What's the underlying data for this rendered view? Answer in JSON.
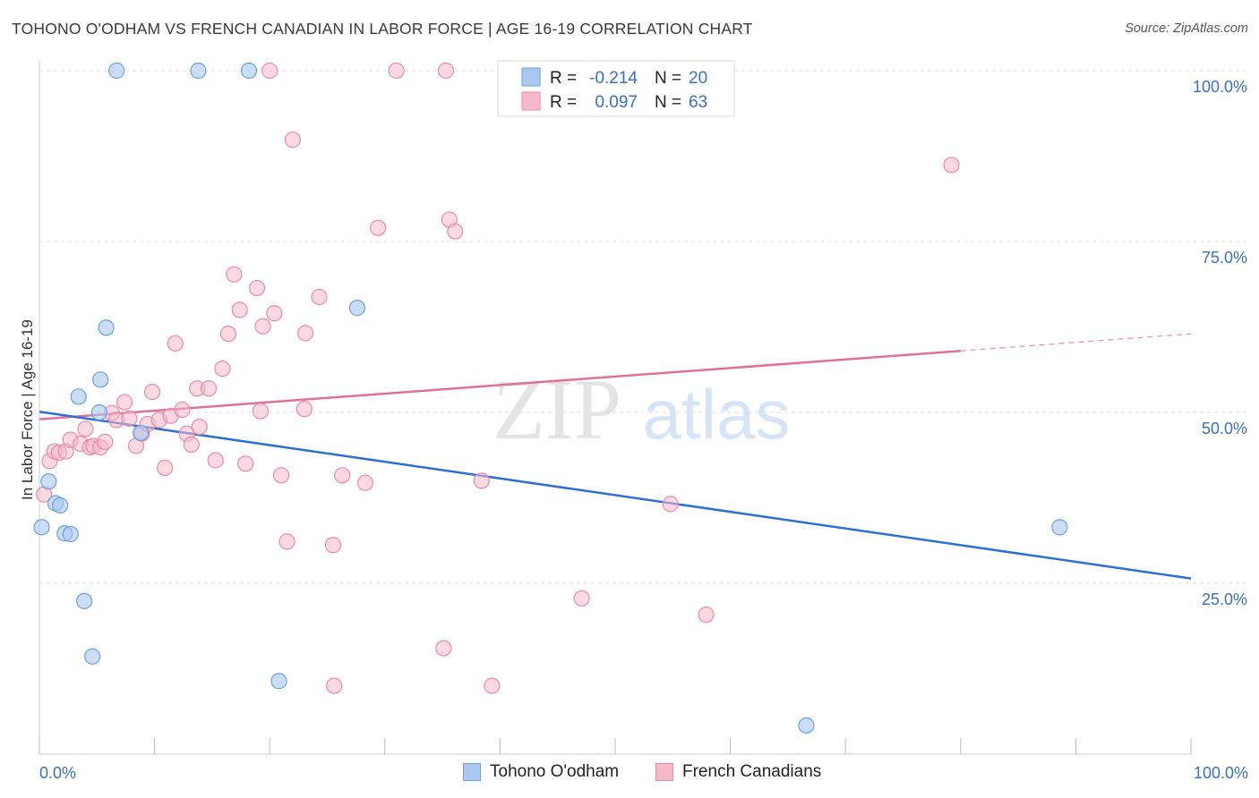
{
  "header": {
    "title": "TOHONO O'ODHAM VS FRENCH CANADIAN IN LABOR FORCE | AGE 16-19 CORRELATION CHART",
    "source": "Source: ZipAtlas.com"
  },
  "watermark": {
    "zip": "ZIP",
    "atlas": "atlas"
  },
  "legend_box": {
    "rows": [
      {
        "r_label": "R =",
        "r_value": "-0.214",
        "n_label": "N =",
        "n_value": "20"
      },
      {
        "r_label": "R =",
        "r_value": "0.097",
        "n_label": "N =",
        "n_value": "63"
      }
    ]
  },
  "colors": {
    "blue_fill": "#a9c8f0",
    "blue_stroke": "#6d9fe0",
    "blue_line": "#2e6fd6",
    "pink_fill": "#f6b9cc",
    "pink_stroke": "#e88aa8",
    "pink_line": "#e07098",
    "axis_label": "#3a6fc4",
    "grid": "#dddddd"
  },
  "chart_data": {
    "type": "scatter",
    "title": "TOHONO O'ODHAM VS FRENCH CANADIAN IN LABOR FORCE | AGE 16-19 CORRELATION CHART",
    "xlabel": "",
    "ylabel": "In Labor Force | Age 16-19",
    "xlim": [
      0,
      100
    ],
    "ylim": [
      0,
      100
    ],
    "x_tick_labels": [
      "0.0%",
      "100.0%"
    ],
    "y_ticks": [
      25,
      50,
      75,
      100
    ],
    "y_tick_labels": [
      "25.0%",
      "50.0%",
      "75.0%",
      "100.0%"
    ],
    "grid": true,
    "legend_position": "bottom",
    "series": [
      {
        "name": "Tohono O'odham",
        "color": "blue",
        "R": -0.214,
        "N": 20,
        "trend": {
          "x": [
            0,
            100
          ],
          "y": [
            50.1,
            25.7
          ]
        },
        "points": [
          [
            0.2,
            33.2
          ],
          [
            0.8,
            39.9
          ],
          [
            1.4,
            36.7
          ],
          [
            1.8,
            36.4
          ],
          [
            2.2,
            32.3
          ],
          [
            2.7,
            32.2
          ],
          [
            3.4,
            52.3
          ],
          [
            3.9,
            22.4
          ],
          [
            4.6,
            14.3
          ],
          [
            5.2,
            50.0
          ],
          [
            5.3,
            54.8
          ],
          [
            5.8,
            62.4
          ],
          [
            8.8,
            47.0
          ],
          [
            6.7,
            100
          ],
          [
            13.8,
            100
          ],
          [
            18.2,
            100
          ],
          [
            20.8,
            10.7
          ],
          [
            27.6,
            65.3
          ],
          [
            66.6,
            4.2
          ],
          [
            88.6,
            33.2
          ]
        ]
      },
      {
        "name": "French Canadians",
        "color": "pink",
        "R": 0.097,
        "N": 63,
        "trend": {
          "x": [
            0,
            80
          ],
          "y": [
            49.0,
            59.0
          ]
        },
        "trend_dashed": {
          "x": [
            80,
            100
          ],
          "y": [
            59.0,
            61.5
          ]
        },
        "points": [
          [
            0.4,
            38.0
          ],
          [
            0.9,
            42.9
          ],
          [
            1.3,
            44.3
          ],
          [
            1.7,
            44.1
          ],
          [
            2.3,
            44.3
          ],
          [
            2.7,
            46.0
          ],
          [
            3.6,
            45.4
          ],
          [
            4.0,
            47.6
          ],
          [
            4.4,
            44.9
          ],
          [
            4.7,
            45.1
          ],
          [
            5.3,
            44.9
          ],
          [
            5.7,
            45.7
          ],
          [
            6.3,
            49.9
          ],
          [
            6.7,
            48.9
          ],
          [
            7.4,
            51.5
          ],
          [
            7.8,
            49.1
          ],
          [
            8.4,
            45.1
          ],
          [
            8.9,
            46.9
          ],
          [
            9.4,
            48.3
          ],
          [
            9.8,
            53.0
          ],
          [
            10.4,
            48.9
          ],
          [
            10.9,
            41.9
          ],
          [
            11.4,
            49.5
          ],
          [
            11.8,
            60.1
          ],
          [
            12.4,
            50.4
          ],
          [
            12.8,
            46.9
          ],
          [
            13.2,
            45.3
          ],
          [
            13.9,
            47.9
          ],
          [
            13.7,
            53.5
          ],
          [
            14.7,
            53.5
          ],
          [
            15.3,
            43.0
          ],
          [
            15.9,
            56.4
          ],
          [
            16.4,
            61.5
          ],
          [
            16.9,
            70.2
          ],
          [
            17.4,
            65.0
          ],
          [
            17.9,
            42.5
          ],
          [
            18.9,
            68.2
          ],
          [
            19.2,
            50.2
          ],
          [
            19.4,
            62.6
          ],
          [
            20.4,
            64.5
          ],
          [
            21.0,
            40.8
          ],
          [
            21.5,
            31.1
          ],
          [
            22.0,
            89.9
          ],
          [
            23.0,
            50.5
          ],
          [
            23.1,
            61.6
          ],
          [
            24.3,
            66.9
          ],
          [
            25.6,
            10.0
          ],
          [
            25.5,
            30.6
          ],
          [
            26.3,
            40.8
          ],
          [
            28.3,
            39.7
          ],
          [
            29.4,
            77.0
          ],
          [
            31.0,
            100
          ],
          [
            35.3,
            100
          ],
          [
            35.1,
            15.5
          ],
          [
            35.6,
            78.2
          ],
          [
            36.1,
            76.5
          ],
          [
            38.4,
            40.0
          ],
          [
            39.3,
            10.0
          ],
          [
            47.1,
            22.8
          ],
          [
            54.8,
            36.6
          ],
          [
            57.9,
            20.4
          ],
          [
            79.2,
            86.2
          ],
          [
            20.0,
            100
          ]
        ]
      }
    ]
  }
}
